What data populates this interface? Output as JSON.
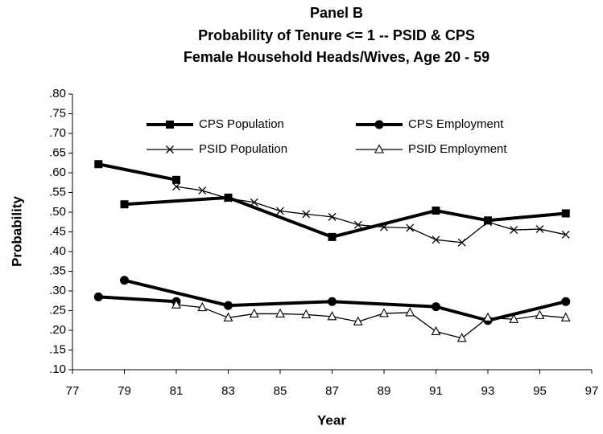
{
  "chart_data": {
    "type": "line",
    "title": [
      "Panel B",
      "Probability of Tenure <=  1 --  PSID & CPS",
      "Female Household Heads/Wives, Age 20 - 59"
    ],
    "x_label": "Year",
    "y_label": "Probability",
    "xlim": [
      77,
      97
    ],
    "xticks": [
      77,
      79,
      81,
      83,
      85,
      87,
      89,
      91,
      93,
      95,
      97
    ],
    "ylim": [
      0.1,
      0.8
    ],
    "yticks": [
      {
        "value": 0.1,
        "label": ".10"
      },
      {
        "value": 0.15,
        "label": ".15"
      },
      {
        "value": 0.2,
        "label": ".20"
      },
      {
        "value": 0.25,
        "label": ".25"
      },
      {
        "value": 0.3,
        "label": ".30"
      },
      {
        "value": 0.35,
        "label": ".35"
      },
      {
        "value": 0.4,
        "label": ".40"
      },
      {
        "value": 0.45,
        "label": ".45"
      },
      {
        "value": 0.5,
        "label": ".50"
      },
      {
        "value": 0.55,
        "label": ".55"
      },
      {
        "value": 0.6,
        "label": ".60"
      },
      {
        "value": 0.65,
        "label": ".65"
      },
      {
        "value": 0.7,
        "label": ".70"
      },
      {
        "value": 0.75,
        "label": ".75"
      },
      {
        "value": 0.8,
        "label": ".80"
      }
    ],
    "grid": false,
    "series": [
      {
        "name": "CPS Population",
        "color": "#000000",
        "marker": "square",
        "line_width": 4,
        "x": [
          78,
          81,
          null,
          79,
          83,
          87,
          91,
          93,
          96
        ],
        "values": [
          0.622,
          0.582,
          null,
          0.52,
          0.537,
          0.437,
          0.504,
          0.479,
          0.497
        ]
      },
      {
        "name": "CPS Employment",
        "color": "#000000",
        "marker": "circle",
        "line_width": 4,
        "x": [
          78,
          81,
          null,
          79,
          83,
          87,
          91,
          93,
          96
        ],
        "values": [
          0.285,
          0.273,
          null,
          0.327,
          0.263,
          0.273,
          0.26,
          0.225,
          0.273
        ]
      },
      {
        "name": "PSID Population",
        "color": "#000000",
        "marker": "cross",
        "line_width": 1.3,
        "x": [
          81,
          82,
          83,
          84,
          85,
          86,
          87,
          88,
          89,
          90,
          91,
          92,
          93,
          94,
          95,
          96
        ],
        "values": [
          0.565,
          0.555,
          0.535,
          0.525,
          0.503,
          0.495,
          0.488,
          0.468,
          0.462,
          0.46,
          0.43,
          0.423,
          0.475,
          0.455,
          0.457,
          0.443
        ]
      },
      {
        "name": "PSID Employment",
        "color": "#000000",
        "marker": "triangle",
        "line_width": 1.3,
        "x": [
          81,
          82,
          83,
          84,
          85,
          86,
          87,
          88,
          89,
          90,
          91,
          92,
          93,
          94,
          95,
          96
        ],
        "values": [
          0.265,
          0.258,
          0.232,
          0.242,
          0.242,
          0.24,
          0.235,
          0.222,
          0.243,
          0.245,
          0.197,
          0.18,
          0.232,
          0.228,
          0.238,
          0.232
        ]
      }
    ]
  }
}
